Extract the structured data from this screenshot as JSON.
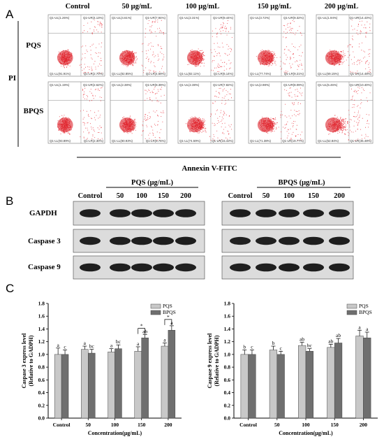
{
  "panel_a": {
    "letter": "A",
    "columns": [
      "Control",
      "50 μg/mL",
      "100 μg/mL",
      "150 μg/mL",
      "200 μg/mL"
    ],
    "row_labels": [
      "PQS",
      "BPQS"
    ],
    "y_axis_label": "PI",
    "x_axis_label": "Annexin V-FITC",
    "quadrants": [
      [
        {
          "ul": "Q1-UL(1.26%)",
          "ur": "Q1-UR(4.13%)",
          "ll": "Q1-LL(91.91%)",
          "lr": "Q1-LR(2.70%)",
          "upper": 0.3,
          "spread": 0.35
        },
        {
          "ul": "Q1-UL(4.61%)",
          "ur": "Q1-UR(7.94%)",
          "ll": "Q1-LL(82.85%)",
          "lr": "Q1-LR(4.59%)",
          "upper": 0.55,
          "spread": 0.45
        },
        {
          "ul": "Q1-UL(2.31%)",
          "ur": "Q1-UR(9.44%)",
          "ll": "Q1-LL(82.11%)",
          "lr": "Q1-LR(6.14%)",
          "upper": 0.6,
          "spread": 0.5
        },
        {
          "ul": "Q1-UL(3.72%)",
          "ur": "Q1-UR(9.32%)",
          "ll": "Q1-LL(77.74%)",
          "lr": "Q1-LR(9.21%)",
          "upper": 0.65,
          "spread": 0.55
        },
        {
          "ul": "Q1-UL(1.94%)",
          "ur": "Q1-UR(14.43%)",
          "ll": "Q1-LL(69.15%)",
          "lr": "Q1-LR(14.48%)",
          "upper": 0.8,
          "spread": 0.65
        }
      ],
      [
        {
          "ul": "Q1-UL(1.19%)",
          "ur": "Q1-UR(2.62%)",
          "ll": "Q1-LL(93.89%)",
          "lr": "Q1-LR(2.30%)",
          "upper": 0.25,
          "spread": 0.3
        },
        {
          "ul": "Q1-UL(2.38%)",
          "ur": "Q1-UR(8.39%)",
          "ll": "Q1-LL(80.93%)",
          "lr": "Q1-LR(5.76%)",
          "upper": 0.5,
          "spread": 0.45
        },
        {
          "ul": "Q1-UL(2.38%)",
          "ur": "Q1-UR(7.82%)",
          "ll": "Q1-LL(74.59%)",
          "lr": "Q1-LR(15.42%)",
          "upper": 0.6,
          "spread": 0.6
        },
        {
          "ul": "Q1-UL(2.98%)",
          "ur": "Q1-UR(8.09%)",
          "ll": "Q1-LL(71.38%)",
          "lr": "Q1-LR(19.77%)",
          "upper": 0.65,
          "spread": 0.65
        },
        {
          "ul": "Q1-UL(5.46%)",
          "ur": "Q1-UR(10.40%)",
          "ll": "Q1-LL(52.84%)",
          "lr": "Q1-LR(36.48%)",
          "upper": 0.9,
          "spread": 0.8
        }
      ]
    ]
  },
  "panel_b": {
    "letter": "B",
    "pqs_header": "PQS (μg/mL)",
    "bpqs_header": "BPQS (μg/mL)",
    "lanes": [
      "Control",
      "50",
      "100",
      "150",
      "200"
    ],
    "rows": [
      "GAPDH",
      "Caspase 3",
      "Caspase 9"
    ],
    "intensity": {
      "pqs": [
        [
          0.9,
          0.9,
          0.9,
          0.9,
          0.9
        ],
        [
          0.85,
          0.88,
          0.9,
          0.9,
          0.92
        ],
        [
          0.9,
          0.88,
          0.88,
          0.87,
          0.85
        ]
      ],
      "bpqs": [
        [
          0.9,
          0.9,
          0.9,
          0.9,
          0.9
        ],
        [
          0.8,
          0.85,
          0.88,
          0.9,
          0.92
        ],
        [
          0.85,
          0.88,
          0.92,
          0.9,
          0.88
        ]
      ]
    }
  },
  "panel_c": {
    "letter": "C",
    "chart_data": [
      {
        "type": "bar",
        "categories": [
          "Control",
          "50",
          "100",
          "150",
          "200"
        ],
        "series": [
          {
            "name": "PQS",
            "color": "#c8c8c8",
            "values": [
              1.0,
              1.08,
              1.04,
              1.05,
              1.13
            ],
            "errors": [
              0.1,
              0.05,
              0.05,
              0.07,
              0.05
            ],
            "labels": [
              "a",
              "a",
              "a",
              "a",
              "a"
            ]
          },
          {
            "name": "BPQS",
            "color": "#6f6f6f",
            "values": [
              1.0,
              1.02,
              1.09,
              1.26,
              1.38
            ],
            "errors": [
              0.07,
              0.06,
              0.06,
              0.05,
              0.07
            ],
            "labels": [
              "c",
              "bc",
              "bc",
              "ab",
              "a"
            ]
          }
        ],
        "ylabel": "Caspase 3 express level (Relative to GADPH)",
        "xlabel": "Concentration(μg/mL)",
        "ylim": [
          0,
          1.8
        ],
        "yticks": [
          "0.0",
          "0.2",
          "0.4",
          "0.6",
          "0.8",
          "1.0",
          "1.2",
          "1.4",
          "1.6",
          "1.8"
        ],
        "significance": [
          {
            "category": "150",
            "label": "*"
          },
          {
            "category": "200",
            "label": "*"
          }
        ],
        "legend": "top-right"
      },
      {
        "type": "bar",
        "categories": [
          "Control",
          "50",
          "100",
          "150",
          "200"
        ],
        "series": [
          {
            "name": "PQS",
            "color": "#c8c8c8",
            "values": [
              1.0,
              1.07,
              1.14,
              1.11,
              1.29
            ],
            "errors": [
              0.07,
              0.06,
              0.05,
              0.05,
              0.09
            ],
            "labels": [
              "b",
              "b",
              "ab",
              "ab",
              "a"
            ]
          },
          {
            "name": "BPQS",
            "color": "#6f6f6f",
            "values": [
              1.0,
              1.0,
              1.05,
              1.18,
              1.26
            ],
            "errors": [
              0.07,
              0.05,
              0.04,
              0.07,
              0.09
            ],
            "labels": [
              "c",
              "c",
              "bc",
              "ab",
              "a"
            ]
          }
        ],
        "ylabel": "Caspase 9 express level (Relative to GADPH)",
        "xlabel": "Concentration(μg/mL)",
        "ylim": [
          0,
          1.8
        ],
        "yticks": [
          "0.0",
          "0.2",
          "0.4",
          "0.6",
          "0.8",
          "1.0",
          "1.2",
          "1.4",
          "1.6",
          "1.8"
        ],
        "significance": [],
        "legend": "top-right"
      }
    ]
  }
}
